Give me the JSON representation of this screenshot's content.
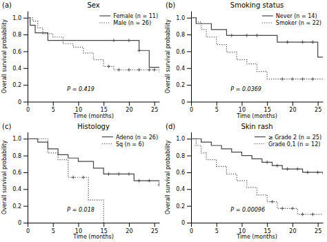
{
  "chart_data": [
    {
      "type": "step",
      "title": "Sex",
      "x_label": "Time (months)",
      "y_label": "Overall survival probability",
      "annotations": [
        "(a)",
        "P = 0.419"
      ],
      "xlim": [
        0,
        26
      ],
      "ylim": [
        0,
        1.08
      ],
      "xticks": [
        0,
        5,
        10,
        15,
        20,
        25
      ],
      "yticks": [
        0,
        0.2,
        0.4,
        0.6,
        0.8,
        {
          "value": 1.0,
          "label": "1.0"
        }
      ],
      "grid": false,
      "legend": "upper right",
      "series": [
        {
          "name": "Female (n = 11)",
          "color": "#444444",
          "line_style": "solid",
          "x": [
            0,
            0.5,
            1.5,
            4,
            8,
            10,
            16,
            22,
            24,
            26
          ],
          "values": [
            1.0,
            0.91,
            0.82,
            0.73,
            0.73,
            0.73,
            0.73,
            0.61,
            0.41,
            0.41
          ],
          "censors": [
            17,
            20,
            22
          ],
          "censor_values": [
            0.73,
            0.73,
            0.61
          ]
        },
        {
          "name": "Male (n = 26)",
          "color": "#444444",
          "line_style": "dotted",
          "x": [
            0,
            1,
            2,
            3,
            5,
            7,
            9,
            11,
            13,
            15,
            17,
            19,
            21,
            23,
            26
          ],
          "values": [
            1.0,
            0.96,
            0.88,
            0.81,
            0.77,
            0.69,
            0.65,
            0.58,
            0.5,
            0.42,
            0.38,
            0.38,
            0.38,
            0.38,
            0.35
          ],
          "censors": [
            16,
            18,
            20,
            22,
            24,
            25
          ],
          "censor_values": [
            0.42,
            0.38,
            0.38,
            0.38,
            0.38,
            0.38
          ]
        }
      ]
    },
    {
      "type": "step",
      "title": "Smoking status",
      "x_label": "Time (months)",
      "y_label": "Overall survival probability",
      "annotations": [
        "(b)",
        "P = 0.0369"
      ],
      "xlim": [
        0,
        26
      ],
      "ylim": [
        0,
        1.08
      ],
      "xticks": [
        0,
        5,
        10,
        15,
        20,
        25
      ],
      "yticks": [
        0,
        0.2,
        0.4,
        0.6,
        0.8,
        {
          "value": 1.0,
          "label": "1.0"
        }
      ],
      "grid": false,
      "legend": "upper right",
      "series": [
        {
          "name": "Never (n = 14)",
          "color": "#444444",
          "line_style": "solid",
          "x": [
            0,
            1,
            4,
            7,
            16,
            17,
            22,
            25,
            26
          ],
          "values": [
            1.0,
            0.93,
            0.86,
            0.79,
            0.79,
            0.71,
            0.71,
            0.53,
            0.53
          ],
          "censors": [
            8,
            11,
            13,
            19,
            22,
            24
          ],
          "censor_values": [
            0.79,
            0.79,
            0.79,
            0.71,
            0.71,
            0.71
          ]
        },
        {
          "name": "Smoker (n = 22)",
          "color": "#444444",
          "line_style": "dotted",
          "x": [
            0,
            1,
            2,
            3,
            5,
            7,
            9,
            11,
            13,
            15,
            17,
            19,
            21,
            25,
            26
          ],
          "values": [
            1.0,
            0.95,
            0.86,
            0.77,
            0.68,
            0.59,
            0.5,
            0.45,
            0.36,
            0.27,
            0.27,
            0.27,
            0.27,
            0.27,
            0.27
          ],
          "censors": [
            18,
            20,
            22,
            24
          ],
          "censor_values": [
            0.27,
            0.27,
            0.27,
            0.27
          ]
        }
      ]
    },
    {
      "type": "step",
      "title": "Histology",
      "x_label": "Time (months)",
      "y_label": "Overall survival probability",
      "annotations": [
        "(c)",
        "P = 0.018"
      ],
      "xlim": [
        0,
        26
      ],
      "ylim": [
        0,
        1.08
      ],
      "xticks": [
        0,
        5,
        10,
        15,
        20,
        25
      ],
      "yticks": [
        0,
        0.2,
        0.4,
        0.6,
        0.8,
        {
          "value": 1.0,
          "label": "1.0"
        }
      ],
      "grid": false,
      "legend": "upper right",
      "series": [
        {
          "name": "Adeno (n = 26)",
          "color": "#444444",
          "line_style": "solid",
          "x": [
            0,
            2,
            4,
            6,
            8,
            10,
            13,
            15,
            17,
            19,
            21,
            23,
            25,
            26
          ],
          "values": [
            1.0,
            0.96,
            0.88,
            0.81,
            0.77,
            0.73,
            0.65,
            0.58,
            0.58,
            0.58,
            0.5,
            0.5,
            0.5,
            0.45
          ],
          "censors": [
            16,
            18,
            20,
            22,
            24,
            26
          ],
          "censor_values": [
            0.58,
            0.58,
            0.58,
            0.5,
            0.5,
            0.45
          ]
        },
        {
          "name": "Sq (n = 6)",
          "color": "#444444",
          "line_style": "dotted",
          "x": [
            0,
            2,
            4,
            6,
            8,
            10,
            12,
            14,
            15
          ],
          "values": [
            1.0,
            1.0,
            0.83,
            0.75,
            0.54,
            0.54,
            0.27,
            0.27,
            0.0
          ],
          "censors": [
            9,
            11
          ],
          "censor_values": [
            0.54,
            0.54
          ]
        }
      ]
    },
    {
      "type": "step",
      "title": "Skin rash",
      "x_label": "Time (months)",
      "y_label": "Overall survival probability",
      "annotations": [
        "(d)",
        "P = 0.00096"
      ],
      "xlim": [
        0,
        26
      ],
      "ylim": [
        0,
        1.08
      ],
      "xticks": [
        0,
        5,
        10,
        15,
        20,
        25
      ],
      "yticks": [
        0,
        0.2,
        0.4,
        0.6,
        0.8,
        {
          "value": 1.0,
          "label": "1.0"
        }
      ],
      "grid": false,
      "legend": "upper right",
      "series": [
        {
          "name": "≥ Grade 2 (n = 25)",
          "color": "#444444",
          "line_style": "solid",
          "x": [
            0,
            1,
            2,
            4,
            6,
            8,
            10,
            12,
            14,
            16,
            18,
            22,
            24,
            26
          ],
          "values": [
            1.0,
            1.0,
            0.96,
            0.92,
            0.88,
            0.84,
            0.8,
            0.76,
            0.72,
            0.68,
            0.64,
            0.6,
            0.6,
            0.58
          ],
          "censors": [
            15,
            17,
            19,
            21,
            23,
            25
          ],
          "censor_values": [
            0.72,
            0.68,
            0.64,
            0.64,
            0.6,
            0.6
          ]
        },
        {
          "name": "Grade 0,1 (n = 12)",
          "color": "#444444",
          "line_style": "dotted",
          "x": [
            0,
            1,
            2,
            3,
            5,
            7,
            9,
            11,
            13,
            15,
            17,
            19,
            21,
            25,
            26
          ],
          "values": [
            1.0,
            0.92,
            0.83,
            0.75,
            0.67,
            0.58,
            0.5,
            0.42,
            0.33,
            0.25,
            0.17,
            0.17,
            0.1,
            0.1,
            0.1
          ],
          "censors": [
            16,
            18,
            20,
            22,
            24
          ],
          "censor_values": [
            0.25,
            0.17,
            0.17,
            0.1,
            0.1
          ]
        }
      ]
    }
  ]
}
